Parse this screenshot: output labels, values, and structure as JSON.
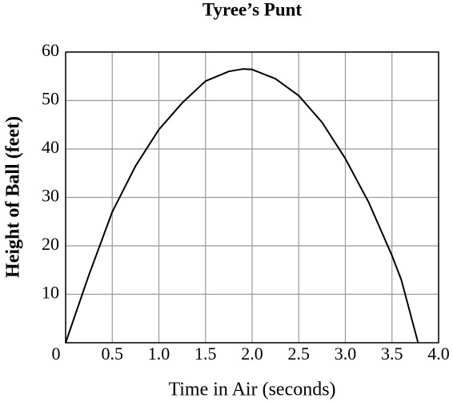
{
  "chart_data": {
    "type": "line",
    "title": "Tyree’s Punt",
    "x_label": "Time in Air (seconds)",
    "y_label": "Height of Ball (feet)",
    "x": [
      0,
      0.25,
      0.5,
      0.75,
      1.0,
      1.25,
      1.5,
      1.75,
      1.9,
      2.0,
      2.25,
      2.5,
      2.75,
      3.0,
      3.25,
      3.5,
      3.6,
      3.78
    ],
    "series": [
      {
        "color": "#000000",
        "values": [
          0,
          14,
          27,
          36.5,
          44,
          49.5,
          54,
          56,
          56.5,
          56.4,
          54.5,
          51,
          45.5,
          38,
          29,
          18,
          13,
          0
        ]
      }
    ],
    "xlim": [
      0,
      4
    ],
    "ylim": [
      0,
      60
    ],
    "xticks": [
      0,
      0.5,
      {
        "value": 1,
        "label": "1.0"
      },
      1.5,
      {
        "value": 2,
        "label": "2.0"
      },
      2.5,
      {
        "value": 3,
        "label": "3.0"
      },
      3.5,
      {
        "value": 4,
        "label": "4.0"
      }
    ],
    "yticks": [
      10,
      20,
      30,
      40,
      50,
      60
    ],
    "grid": true
  }
}
